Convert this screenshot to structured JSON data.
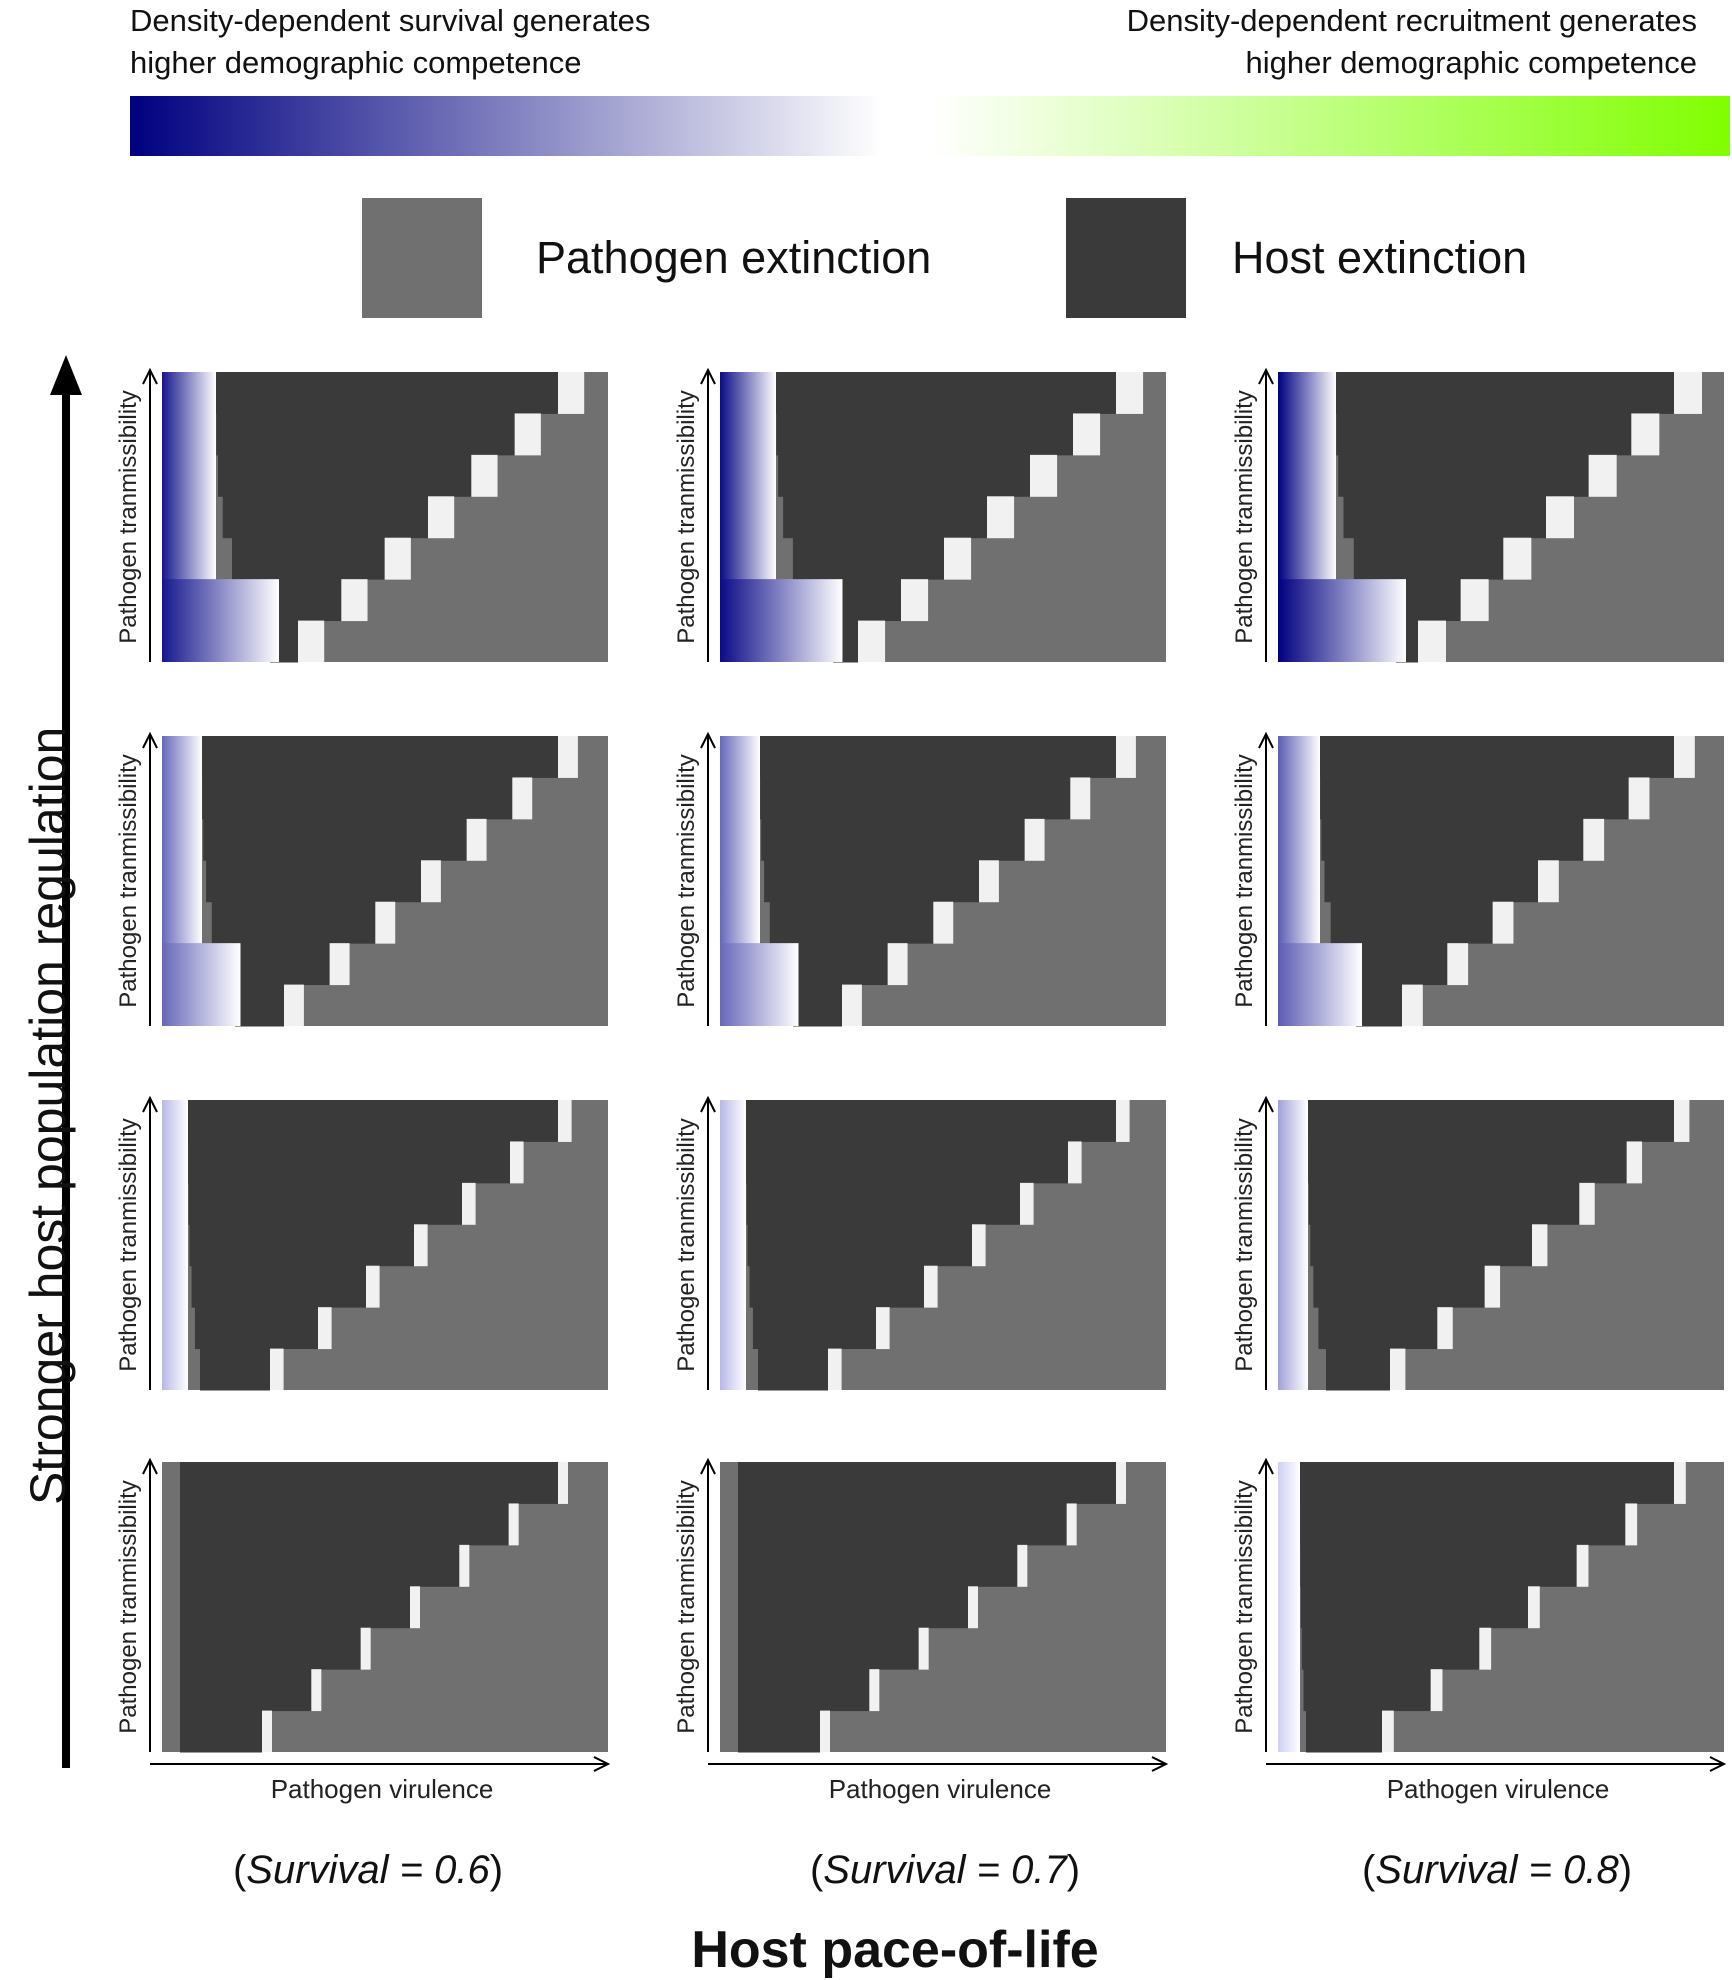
{
  "colorbar": {
    "left_text": [
      "Density-dependent  survival generates",
      "higher demographic competence"
    ],
    "right_text": [
      "Density-dependent  recruitment generates",
      "higher demographic competence"
    ],
    "colors": [
      "#000080",
      "#ffffff",
      "#80ff00"
    ]
  },
  "legend": [
    {
      "label": "Pathogen extinction",
      "color": "#707070"
    },
    {
      "label": "Host extinction",
      "color": "#3a3a3a"
    }
  ],
  "y_title": "Stronger host population regulation",
  "x_title": "Host pace-of-life",
  "columns": [
    {
      "prefix": "(",
      "italic": "Survival = 0.6",
      "suffix": ")"
    },
    {
      "prefix": "(",
      "italic": "Survival = 0.7",
      "suffix": ")"
    },
    {
      "prefix": "(",
      "italic": "Survival = 0.8",
      "suffix": ")"
    }
  ],
  "chart_data": {
    "type": "heatmap",
    "panel_xlabel": "Pathogen virulence",
    "panel_ylabel": "Pathogen tranmissibility",
    "grid": {
      "columns": 3,
      "rows": 4,
      "row_order": "top = strongest regulation"
    },
    "categories": {
      "pathogen_extinction": "#707070",
      "host_extinction": "#3a3a3a"
    },
    "panels": [
      {
        "row": 0,
        "col": 0,
        "blue_intensity": 0.9
      },
      {
        "row": 0,
        "col": 1,
        "blue_intensity": 0.95
      },
      {
        "row": 0,
        "col": 2,
        "blue_intensity": 1.0
      },
      {
        "row": 1,
        "col": 0,
        "blue_intensity": 0.55
      },
      {
        "row": 1,
        "col": 1,
        "blue_intensity": 0.55
      },
      {
        "row": 1,
        "col": 2,
        "blue_intensity": 0.6
      },
      {
        "row": 2,
        "col": 0,
        "blue_intensity": 0.2
      },
      {
        "row": 2,
        "col": 1,
        "blue_intensity": 0.2
      },
      {
        "row": 2,
        "col": 2,
        "blue_intensity": 0.3
      },
      {
        "row": 3,
        "col": 0,
        "blue_intensity": 0.0
      },
      {
        "row": 3,
        "col": 1,
        "blue_intensity": 0.0
      },
      {
        "row": 3,
        "col": 2,
        "blue_intensity": 0.1
      }
    ]
  }
}
